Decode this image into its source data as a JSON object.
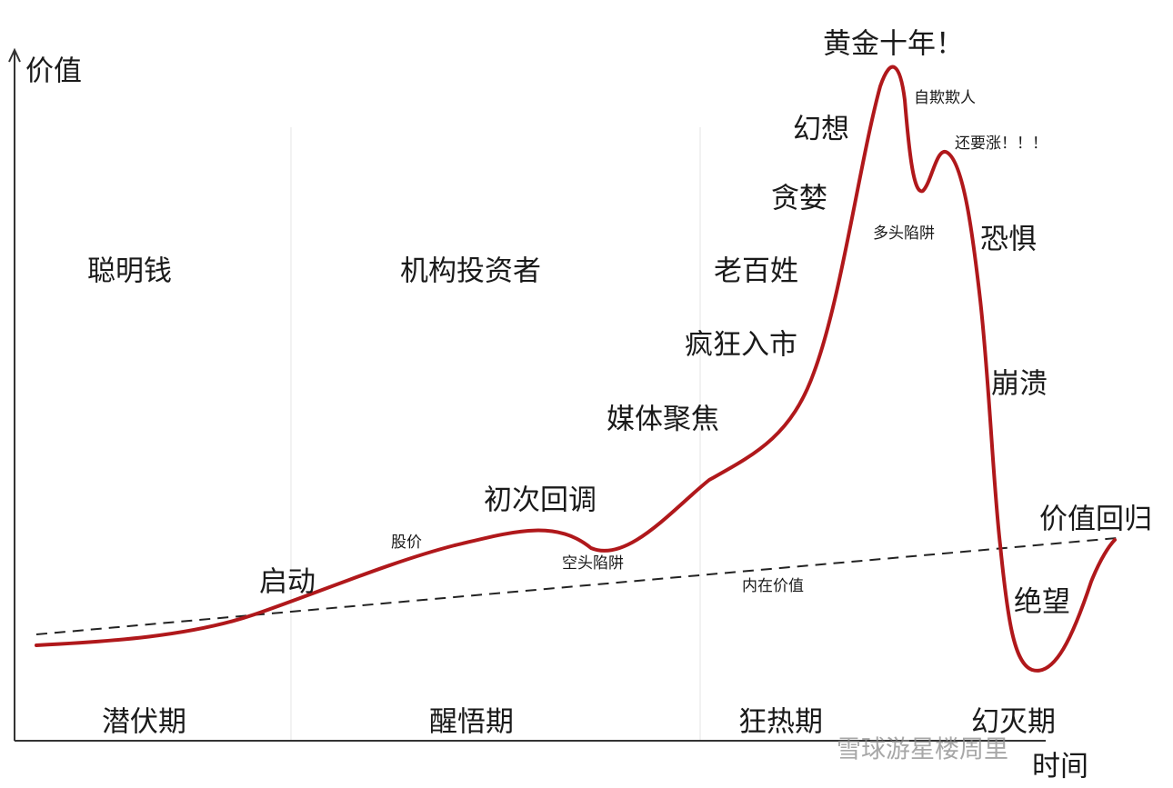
{
  "axes": {
    "y": "价值",
    "x": "时间"
  },
  "phases": [
    "潜伏期",
    "醒悟期",
    "狂热期",
    "幻灭期"
  ],
  "participants": [
    "聪明钱",
    "机构投资者",
    "老百姓"
  ],
  "labels": {
    "start": "启动",
    "price": "股价",
    "first_pullback": "初次回调",
    "bear_trap": "空头陷阱",
    "media": "媒体聚焦",
    "frenzy": "疯狂入市",
    "greed": "贪婪",
    "fantasy": "幻想",
    "golden_decade": "黄金十年！",
    "self_deception": "自欺欺人",
    "bull_trap": "多头陷阱",
    "more_rise": "还要涨！！！",
    "fear": "恐惧",
    "collapse": "崩溃",
    "despair": "绝望",
    "reversion": "价值回归",
    "intrinsic": "内在价值"
  },
  "watermark": "雪球游星楼周里"
}
